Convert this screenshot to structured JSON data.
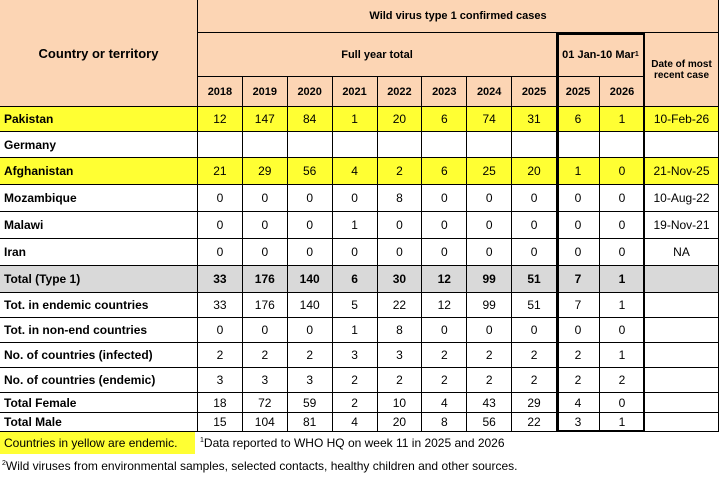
{
  "header": {
    "title": "Wild virus type 1 confirmed cases",
    "country_col": "Country or territory",
    "full_year": "Full year total",
    "period": "01 Jan-10 Mar",
    "period_note": "1",
    "date_col": "Date of most recent case"
  },
  "years": [
    "2018",
    "2019",
    "2020",
    "2021",
    "2022",
    "2023",
    "2024",
    "2025",
    "2025",
    "2026"
  ],
  "rows": [
    {
      "label": "Pakistan",
      "style": "endemic",
      "values": [
        12,
        147,
        84,
        1,
        20,
        6,
        74,
        31,
        6,
        1
      ],
      "date": "10-Feb-26"
    },
    {
      "label": "Germany",
      "style": "plain",
      "values": [
        null,
        null,
        null,
        null,
        null,
        null,
        null,
        null,
        null,
        null
      ],
      "date": null
    },
    {
      "label": "Afghanistan",
      "style": "endemic",
      "values": [
        21,
        29,
        56,
        4,
        2,
        6,
        25,
        20,
        1,
        0
      ],
      "date": "21-Nov-25"
    },
    {
      "label": "Mozambique",
      "style": "plain",
      "values": [
        0,
        0,
        0,
        0,
        8,
        0,
        0,
        0,
        0,
        0
      ],
      "date": "10-Aug-22"
    },
    {
      "label": "Malawi",
      "style": "plain",
      "values": [
        0,
        0,
        0,
        1,
        0,
        0,
        0,
        0,
        0,
        0
      ],
      "date": "19-Nov-21"
    },
    {
      "label": "Iran",
      "style": "plain",
      "values": [
        0,
        0,
        0,
        0,
        0,
        0,
        0,
        0,
        0,
        0
      ],
      "date": "NA"
    },
    {
      "label": "Total (Type 1)",
      "style": "total",
      "values": [
        33,
        176,
        140,
        6,
        30,
        12,
        99,
        51,
        7,
        1
      ],
      "date": null
    },
    {
      "label": "Tot. in endemic countries",
      "style": "plain",
      "values": [
        33,
        176,
        140,
        5,
        22,
        12,
        99,
        51,
        7,
        1
      ],
      "date": null
    },
    {
      "label": "Tot. in non-end countries",
      "style": "plain",
      "values": [
        0,
        0,
        0,
        1,
        8,
        0,
        0,
        0,
        0,
        0
      ],
      "date": null
    },
    {
      "label": "No. of countries (infected)",
      "style": "plain",
      "values": [
        2,
        2,
        2,
        3,
        3,
        2,
        2,
        2,
        2,
        1
      ],
      "date": null
    },
    {
      "label": "No. of countries (endemic)",
      "style": "plain",
      "values": [
        3,
        3,
        3,
        2,
        2,
        2,
        2,
        2,
        2,
        2
      ],
      "date": null
    },
    {
      "label": "Total Female",
      "style": "plain",
      "values": [
        18,
        72,
        59,
        2,
        10,
        4,
        43,
        29,
        4,
        0
      ],
      "date": null
    },
    {
      "label": "Total Male",
      "style": "plain",
      "values": [
        15,
        104,
        81,
        4,
        20,
        8,
        56,
        22,
        3,
        1
      ],
      "date": null
    }
  ],
  "footer": {
    "legend": "Countries in yellow are endemic.",
    "note1_mark": "1",
    "note1": "Data reported to WHO HQ on week 11 in 2025 and  2026",
    "note2_mark": "2",
    "note2": "Wild viruses from environmental samples, selected contacts, healthy children and other sources."
  }
}
